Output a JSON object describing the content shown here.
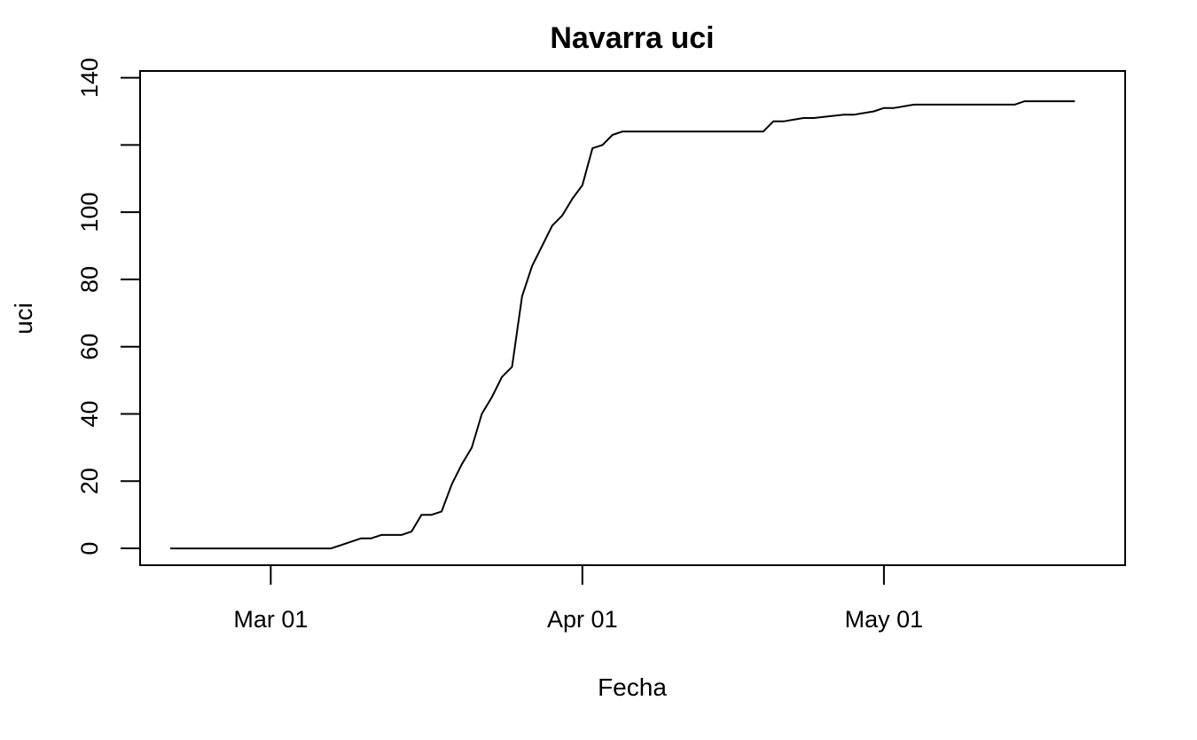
{
  "chart_data": {
    "type": "line",
    "title": "Navarra uci",
    "xlabel": "Fecha",
    "ylabel": "uci",
    "x_ticks": [
      {
        "date": "2020-03-01",
        "label": "Mar 01"
      },
      {
        "date": "2020-04-01",
        "label": "Apr 01"
      },
      {
        "date": "2020-05-01",
        "label": "May 01"
      }
    ],
    "y_ticks": [
      0,
      20,
      40,
      60,
      80,
      100,
      120,
      140
    ],
    "y_tick_labels": [
      "0",
      "20",
      "40",
      "60",
      "80",
      "100",
      "",
      "140"
    ],
    "xlim": [
      "2020-02-17",
      "2020-05-25"
    ],
    "ylim": [
      -5,
      142
    ],
    "grid": false,
    "line_color": "#000000",
    "series": [
      {
        "x": [
          "2020-02-20",
          "2020-03-07",
          "2020-03-10",
          "2020-03-11",
          "2020-03-12",
          "2020-03-13",
          "2020-03-14",
          "2020-03-15",
          "2020-03-16",
          "2020-03-17",
          "2020-03-18",
          "2020-03-19",
          "2020-03-20",
          "2020-03-21",
          "2020-03-22",
          "2020-03-23",
          "2020-03-24",
          "2020-03-25",
          "2020-03-26",
          "2020-03-27",
          "2020-03-28",
          "2020-03-29",
          "2020-03-30",
          "2020-03-31",
          "2020-04-01",
          "2020-04-02",
          "2020-04-03",
          "2020-04-04",
          "2020-04-05",
          "2020-04-19",
          "2020-04-20",
          "2020-04-21",
          "2020-04-23",
          "2020-04-24",
          "2020-04-27",
          "2020-04-28",
          "2020-04-30",
          "2020-05-01",
          "2020-05-02",
          "2020-05-04",
          "2020-05-14",
          "2020-05-15",
          "2020-05-16",
          "2020-05-20"
        ],
        "y": [
          0,
          0,
          3,
          3,
          4,
          4,
          4,
          5,
          10,
          10,
          11,
          19,
          25,
          30,
          40,
          45,
          51,
          54,
          75,
          84,
          90,
          96,
          99,
          104,
          108,
          119,
          120,
          123,
          124,
          124,
          127,
          127,
          128,
          128,
          129,
          129,
          130,
          131,
          131,
          132,
          132,
          133,
          133,
          133
        ]
      }
    ]
  }
}
